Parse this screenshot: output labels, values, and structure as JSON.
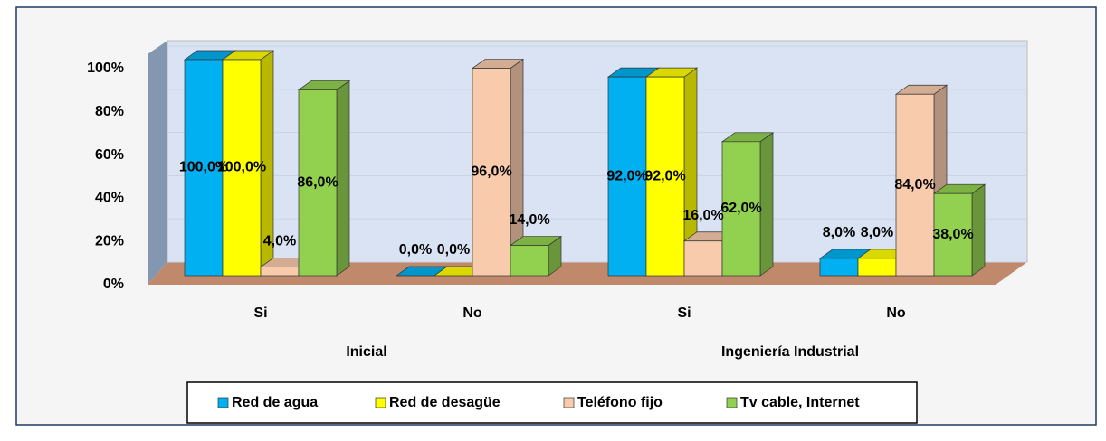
{
  "chart_data": {
    "type": "bar3d",
    "groups": [
      "Inicial",
      "Ingeniería Industrial"
    ],
    "categories": [
      "Si",
      "No",
      "Si",
      "No"
    ],
    "series": [
      {
        "name": "Red de agua",
        "color": "#00b0f0",
        "values": [
          100,
          0,
          92,
          8
        ],
        "value_labels": [
          "100,0%",
          "0,0%",
          "92,0%",
          "8,0%"
        ]
      },
      {
        "name": "Red de desagüe",
        "color": "#ffff00",
        "values": [
          100,
          0,
          92,
          8
        ],
        "value_labels": [
          "100,0%",
          "0,0%",
          "92,0%",
          "8,0%"
        ]
      },
      {
        "name": "Teléfono fijo",
        "color": "#f8cbad",
        "values": [
          4,
          96,
          16,
          84
        ],
        "value_labels": [
          "4,0%",
          "96,0%",
          "16,0%",
          "84,0%"
        ]
      },
      {
        "name": "Tv cable, Internet",
        "color": "#92d050",
        "values": [
          86,
          14,
          62,
          38
        ],
        "value_labels": [
          "86,0%",
          "14,0%",
          "62,0%",
          "38,0%"
        ]
      }
    ],
    "ylim": [
      0,
      100
    ],
    "yticks": [
      {
        "value": 0,
        "label": "0%"
      },
      {
        "value": 20,
        "label": "20%"
      },
      {
        "value": 40,
        "label": "40%"
      },
      {
        "value": 60,
        "label": "60%"
      },
      {
        "value": 80,
        "label": "80%"
      },
      {
        "value": 100,
        "label": "100%"
      }
    ],
    "grid": true,
    "legend": "bottom"
  }
}
